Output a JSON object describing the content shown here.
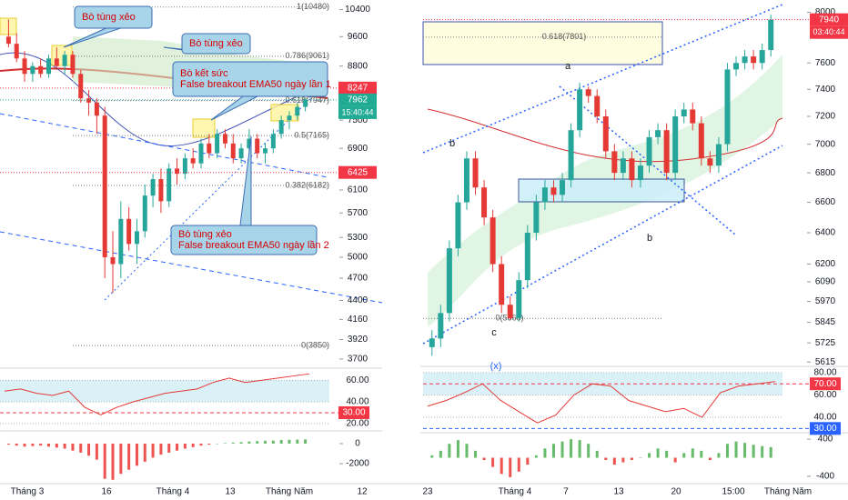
{
  "chart_data": [
    {
      "type": "candlestick",
      "open": [
        9600,
        9400,
        9000,
        8600,
        8800,
        8600,
        9000,
        8800,
        9100,
        8600,
        8000,
        7900,
        7600,
        5000,
        4900,
        5600,
        5200,
        5400,
        6000,
        6300,
        5900,
        6500,
        6400,
        6700,
        6600,
        7000,
        6800,
        7200,
        7000,
        6700,
        6900,
        7100,
        6800,
        6900,
        7200,
        7500,
        7600,
        7800
      ],
      "high": [
        10100,
        9700,
        9200,
        8900,
        9000,
        9100,
        9300,
        9200,
        9200,
        8700,
        8200,
        8000,
        7800,
        5400,
        5900,
        5800,
        5600,
        6200,
        6400,
        6500,
        6600,
        6700,
        6800,
        6900,
        7100,
        7200,
        7300,
        7300,
        7200,
        7000,
        7300,
        7200,
        7000,
        7300,
        7600,
        7700,
        7900,
        8000
      ],
      "low": [
        9300,
        8900,
        8400,
        8400,
        8500,
        8500,
        8700,
        8600,
        8500,
        7900,
        7600,
        7200,
        4700,
        4500,
        4700,
        5100,
        4900,
        5300,
        5800,
        5700,
        5800,
        6200,
        6300,
        6500,
        6500,
        6700,
        6700,
        6900,
        6600,
        6600,
        6800,
        6700,
        6600,
        6800,
        7100,
        7300,
        7500,
        7700
      ],
      "close": [
        9400,
        9000,
        8600,
        8800,
        8600,
        9000,
        8800,
        9100,
        8600,
        8000,
        7900,
        7600,
        5000,
        4900,
        5600,
        5200,
        5400,
        6000,
        6300,
        5900,
        6500,
        6400,
        6700,
        6600,
        7000,
        6800,
        7200,
        7000,
        6700,
        6900,
        7100,
        6800,
        6900,
        7200,
        7500,
        7600,
        7800,
        7960
      ],
      "up_color": "#26a69a",
      "down_color": "#e53935",
      "ylim": [
        3650,
        10700
      ],
      "log_scale": true,
      "yticks": [
        10400,
        9600,
        8800,
        7500,
        6900,
        6100,
        5700,
        5300,
        5000,
        4700,
        4400,
        4160,
        3920,
        3700
      ],
      "fib_levels": [
        {
          "value": 10480,
          "label": "1(10480)"
        },
        {
          "value": 9061,
          "label": "0.786(9061)"
        },
        {
          "value": 7947,
          "label": "0.618(7947)"
        },
        {
          "value": 7165,
          "label": "0.5(7165)"
        },
        {
          "value": 6182,
          "label": "0.382(6182)"
        },
        {
          "value": 3850,
          "label": "0(3850)"
        }
      ],
      "price_tags": [
        {
          "value": 8247,
          "color": "#f23645"
        },
        {
          "value": 7962,
          "color": "#22ab94"
        },
        {
          "value": 6425,
          "color": "#f23645"
        }
      ],
      "countdown": "15:40:44",
      "annotations": [
        [
          "Bò tùng xẻo"
        ],
        [
          "Bò tùng xẻo"
        ],
        [
          "Bò kết sức",
          "False breakout EMA50 ngày lần 1"
        ],
        [
          "Bò tùng xẻo",
          "False breakout EMA50 ngày lần 2"
        ]
      ],
      "x_labels": [
        "Tháng 3",
        "16",
        "Tháng 4",
        "13",
        "Tháng Năm",
        "12"
      ],
      "rsi": {
        "values": [
          50,
          52,
          48,
          46,
          50,
          35,
          28,
          35,
          40,
          44,
          48,
          50,
          52,
          58,
          62,
          58,
          60,
          62,
          64,
          66
        ],
        "color": "#e53935",
        "ylim": [
          14,
          67
        ],
        "yticks": [
          {
            "value": 60,
            "label": "60.00"
          },
          {
            "value": 40,
            "label": "40.00"
          },
          {
            "value": 20,
            "label": "20.00"
          }
        ],
        "tags": [
          {
            "value": 30,
            "label": "30.00",
            "color": "#f23645"
          }
        ]
      },
      "macd": {
        "values": [
          -100,
          -200,
          -300,
          -250,
          -200,
          -300,
          -400,
          -500,
          -700,
          -900,
          -1200,
          -1600,
          -3500,
          -3600,
          -3000,
          -2600,
          -2200,
          -1800,
          -1400,
          -1100,
          -900,
          -700,
          -500,
          -350,
          -200,
          -100,
          0,
          50,
          100,
          150,
          200,
          250,
          280,
          300,
          350,
          380,
          400,
          420
        ],
        "ylim": [
          -3800,
          900
        ],
        "yticks": [
          0,
          -2000
        ]
      }
    },
    {
      "type": "candlestick",
      "open": [
        5700,
        5750,
        5900,
        6300,
        6600,
        6900,
        6700,
        6500,
        6200,
        5950,
        5870,
        6100,
        6400,
        6600,
        6700,
        6650,
        6750,
        7100,
        7400,
        7350,
        7200,
        6950,
        6800,
        6900,
        6750,
        6850,
        7050,
        7100,
        6800,
        7200,
        7250,
        7150,
        6900,
        6850,
        7000,
        7550,
        7600,
        7650,
        7600,
        7700
      ],
      "high": [
        5800,
        5950,
        6350,
        6650,
        6950,
        6950,
        6750,
        6550,
        6250,
        6000,
        6150,
        6450,
        6650,
        6750,
        6750,
        6800,
        7150,
        7450,
        7420,
        7400,
        7250,
        7000,
        6950,
        6950,
        6900,
        7100,
        7150,
        7150,
        7250,
        7300,
        7300,
        7200,
        6950,
        7050,
        7600,
        7650,
        7700,
        7700,
        7750,
        7980
      ],
      "low": [
        5650,
        5700,
        5850,
        6250,
        6550,
        6650,
        6450,
        6150,
        5900,
        5860,
        5850,
        6050,
        6350,
        6550,
        6600,
        6600,
        6700,
        7050,
        7300,
        7150,
        6900,
        6750,
        6750,
        6700,
        6700,
        6800,
        7000,
        6750,
        6750,
        7150,
        7100,
        6850,
        6800,
        6800,
        6950,
        7500,
        7550,
        7550,
        7550,
        7650
      ],
      "close": [
        5750,
        5900,
        6300,
        6600,
        6900,
        6700,
        6500,
        6200,
        5950,
        5870,
        6100,
        6400,
        6600,
        6700,
        6650,
        6750,
        7100,
        7400,
        7350,
        7200,
        6950,
        6800,
        6900,
        6750,
        6850,
        7050,
        7100,
        6800,
        7200,
        7250,
        7150,
        6900,
        6850,
        7000,
        7550,
        7600,
        7650,
        7600,
        7700,
        7940
      ],
      "up_color": "#26a69a",
      "down_color": "#e53935",
      "ylim": [
        5580,
        8100
      ],
      "log_scale": true,
      "yticks": [
        8000,
        7600,
        7400,
        7200,
        7000,
        6800,
        6600,
        6400,
        6200,
        6090,
        5970,
        5845,
        5725,
        5615
      ],
      "fib_levels": [
        {
          "value": 7801,
          "label": "0.618(7801)"
        },
        {
          "value": 5868,
          "label": "0(5868)"
        }
      ],
      "price_tags": [
        {
          "value": 7940,
          "color": "#f23645"
        }
      ],
      "countdown": "03:40:44",
      "wave_labels": [
        "a",
        "b",
        "c",
        "b",
        "(x)"
      ],
      "x_labels": [
        "23",
        "Tháng 4",
        "7",
        "13",
        "20",
        "15:00",
        "Tháng Năm"
      ],
      "rsi": {
        "values": [
          50,
          55,
          62,
          70,
          55,
          45,
          35,
          42,
          60,
          70,
          68,
          55,
          50,
          45,
          48,
          40,
          62,
          68,
          70,
          72
        ],
        "color": "#e53935",
        "ylim": [
          27,
          84
        ],
        "yticks": [
          {
            "value": 80,
            "label": "80.00"
          },
          {
            "value": 60,
            "label": "60.00"
          },
          {
            "value": 40,
            "label": "40.00"
          }
        ],
        "tags": [
          {
            "value": 70,
            "label": "70.00",
            "color": "#f23645"
          },
          {
            "value": 30,
            "label": "30.00",
            "color": "#2962ff"
          }
        ]
      },
      "macd": {
        "values": [
          50,
          150,
          300,
          380,
          300,
          150,
          -50,
          -200,
          -350,
          -420,
          -300,
          -150,
          50,
          200,
          300,
          350,
          400,
          380,
          300,
          150,
          -50,
          -150,
          -100,
          -50,
          0,
          100,
          200,
          150,
          -100,
          100,
          200,
          150,
          -50,
          100,
          300,
          350,
          320,
          280,
          250,
          230
        ],
        "ylim": [
          -520,
          500
        ],
        "yticks": [
          400,
          -400
        ]
      }
    }
  ]
}
